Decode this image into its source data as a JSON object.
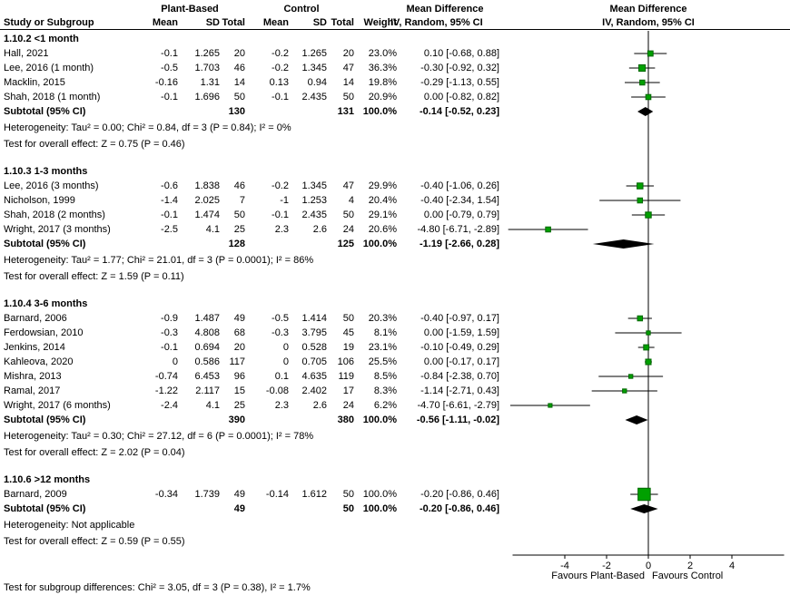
{
  "header": {
    "group_left": "Plant-Based",
    "group_right": "Control",
    "md_col_title": "Mean Difference",
    "md_col_sub": "IV, Random, 95% CI",
    "plot_title": "Mean Difference",
    "plot_sub": "IV, Random, 95% CI",
    "study_col": "Study or Subgroup",
    "mean": "Mean",
    "sd": "SD",
    "total": "Total",
    "weight": "Weight"
  },
  "footer": {
    "subgroup_test": "Test for subgroup differences: Chi² = 3.05, df = 3 (P = 0.38), I² = 1.7%"
  },
  "chart_data": {
    "type": "forest",
    "title": "Mean Difference",
    "subtitle": "IV, Random, 95% CI",
    "colors": {
      "marker": "#00A000",
      "marker_border": "#006600",
      "diamond": "#000000",
      "line": "#000000"
    },
    "axis": {
      "ticks": [
        -4,
        -2,
        0,
        2,
        4
      ],
      "xmin": -6.5,
      "xmax": 6.5,
      "left_label": "Favours Plant-Based",
      "right_label": "Favours Control"
    },
    "groups": [
      {
        "title": "1.10.2 <1 month",
        "studies": [
          {
            "name": "Hall, 2021",
            "mean1": "-0.1",
            "sd1": "1.265",
            "n1": "20",
            "mean2": "-0.2",
            "sd2": "1.265",
            "n2": "20",
            "weight": "23.0%",
            "ci_text": "0.10 [-0.68, 0.88]",
            "est": 0.1,
            "lo": -0.68,
            "hi": 0.88,
            "wpct": 23.0
          },
          {
            "name": "Lee, 2016 (1 month)",
            "mean1": "-0.5",
            "sd1": "1.703",
            "n1": "46",
            "mean2": "-0.2",
            "sd2": "1.345",
            "n2": "47",
            "weight": "36.3%",
            "ci_text": "-0.30 [-0.92, 0.32]",
            "est": -0.3,
            "lo": -0.92,
            "hi": 0.32,
            "wpct": 36.3
          },
          {
            "name": "Macklin, 2015",
            "mean1": "-0.16",
            "sd1": "1.31",
            "n1": "14",
            "mean2": "0.13",
            "sd2": "0.94",
            "n2": "14",
            "weight": "19.8%",
            "ci_text": "-0.29 [-1.13, 0.55]",
            "est": -0.29,
            "lo": -1.13,
            "hi": 0.55,
            "wpct": 19.8
          },
          {
            "name": "Shah, 2018 (1 month)",
            "mean1": "-0.1",
            "sd1": "1.696",
            "n1": "50",
            "mean2": "-0.1",
            "sd2": "2.435",
            "n2": "50",
            "weight": "20.9%",
            "ci_text": "0.00 [-0.82, 0.82]",
            "est": 0.0,
            "lo": -0.82,
            "hi": 0.82,
            "wpct": 20.9
          }
        ],
        "subtotal": {
          "label": "Subtotal (95% CI)",
          "n1": "130",
          "n2": "131",
          "weight": "100.0%",
          "ci_text": "-0.14 [-0.52, 0.23]",
          "est": -0.14,
          "lo": -0.52,
          "hi": 0.23
        },
        "heterogeneity": "Heterogeneity: Tau² = 0.00; Chi² = 0.84, df = 3 (P = 0.84); I² = 0%",
        "overall_effect": "Test for overall effect: Z = 0.75 (P = 0.46)"
      },
      {
        "title": "1.10.3 1-3 months",
        "studies": [
          {
            "name": "Lee, 2016 (3 months)",
            "mean1": "-0.6",
            "sd1": "1.838",
            "n1": "46",
            "mean2": "-0.2",
            "sd2": "1.345",
            "n2": "47",
            "weight": "29.9%",
            "ci_text": "-0.40 [-1.06, 0.26]",
            "est": -0.4,
            "lo": -1.06,
            "hi": 0.26,
            "wpct": 29.9
          },
          {
            "name": "Nicholson, 1999",
            "mean1": "-1.4",
            "sd1": "2.025",
            "n1": "7",
            "mean2": "-1",
            "sd2": "1.253",
            "n2": "4",
            "weight": "20.4%",
            "ci_text": "-0.40 [-2.34, 1.54]",
            "est": -0.4,
            "lo": -2.34,
            "hi": 1.54,
            "wpct": 20.4
          },
          {
            "name": "Shah, 2018 (2 months)",
            "mean1": "-0.1",
            "sd1": "1.474",
            "n1": "50",
            "mean2": "-0.1",
            "sd2": "2.435",
            "n2": "50",
            "weight": "29.1%",
            "ci_text": "0.00 [-0.79, 0.79]",
            "est": 0.0,
            "lo": -0.79,
            "hi": 0.79,
            "wpct": 29.1
          },
          {
            "name": "Wright, 2017 (3 months)",
            "mean1": "-2.5",
            "sd1": "4.1",
            "n1": "25",
            "mean2": "2.3",
            "sd2": "2.6",
            "n2": "24",
            "weight": "20.6%",
            "ci_text": "-4.80 [-6.71, -2.89]",
            "est": -4.8,
            "lo": -6.71,
            "hi": -2.89,
            "wpct": 20.6
          }
        ],
        "subtotal": {
          "label": "Subtotal (95% CI)",
          "n1": "128",
          "n2": "125",
          "weight": "100.0%",
          "ci_text": "-1.19 [-2.66, 0.28]",
          "est": -1.19,
          "lo": -2.66,
          "hi": 0.28
        },
        "heterogeneity": "Heterogeneity: Tau² = 1.77; Chi² = 21.01, df = 3 (P = 0.0001); I² = 86%",
        "overall_effect": "Test for overall effect: Z = 1.59 (P = 0.11)"
      },
      {
        "title": "1.10.4 3-6 months",
        "studies": [
          {
            "name": "Barnard, 2006",
            "mean1": "-0.9",
            "sd1": "1.487",
            "n1": "49",
            "mean2": "-0.5",
            "sd2": "1.414",
            "n2": "50",
            "weight": "20.3%",
            "ci_text": "-0.40 [-0.97, 0.17]",
            "est": -0.4,
            "lo": -0.97,
            "hi": 0.17,
            "wpct": 20.3
          },
          {
            "name": "Ferdowsian, 2010",
            "mean1": "-0.3",
            "sd1": "4.808",
            "n1": "68",
            "mean2": "-0.3",
            "sd2": "3.795",
            "n2": "45",
            "weight": "8.1%",
            "ci_text": "0.00 [-1.59, 1.59]",
            "est": 0.0,
            "lo": -1.59,
            "hi": 1.59,
            "wpct": 8.1
          },
          {
            "name": "Jenkins, 2014",
            "mean1": "-0.1",
            "sd1": "0.694",
            "n1": "20",
            "mean2": "0",
            "sd2": "0.528",
            "n2": "19",
            "weight": "23.1%",
            "ci_text": "-0.10 [-0.49, 0.29]",
            "est": -0.1,
            "lo": -0.49,
            "hi": 0.29,
            "wpct": 23.1
          },
          {
            "name": "Kahleova, 2020",
            "mean1": "0",
            "sd1": "0.586",
            "n1": "117",
            "mean2": "0",
            "sd2": "0.705",
            "n2": "106",
            "weight": "25.5%",
            "ci_text": "0.00 [-0.17, 0.17]",
            "est": 0.0,
            "lo": -0.17,
            "hi": 0.17,
            "wpct": 25.5
          },
          {
            "name": "Mishra, 2013",
            "mean1": "-0.74",
            "sd1": "6.453",
            "n1": "96",
            "mean2": "0.1",
            "sd2": "4.635",
            "n2": "119",
            "weight": "8.5%",
            "ci_text": "-0.84 [-2.38, 0.70]",
            "est": -0.84,
            "lo": -2.38,
            "hi": 0.7,
            "wpct": 8.5
          },
          {
            "name": "Ramal, 2017",
            "mean1": "-1.22",
            "sd1": "2.117",
            "n1": "15",
            "mean2": "-0.08",
            "sd2": "2.402",
            "n2": "17",
            "weight": "8.3%",
            "ci_text": "-1.14 [-2.71, 0.43]",
            "est": -1.14,
            "lo": -2.71,
            "hi": 0.43,
            "wpct": 8.3
          },
          {
            "name": "Wright, 2017 (6 months)",
            "mean1": "-2.4",
            "sd1": "4.1",
            "n1": "25",
            "mean2": "2.3",
            "sd2": "2.6",
            "n2": "24",
            "weight": "6.2%",
            "ci_text": "-4.70 [-6.61, -2.79]",
            "est": -4.7,
            "lo": -6.61,
            "hi": -2.79,
            "wpct": 6.2
          }
        ],
        "subtotal": {
          "label": "Subtotal (95% CI)",
          "n1": "390",
          "n2": "380",
          "weight": "100.0%",
          "ci_text": "-0.56 [-1.11, -0.02]",
          "est": -0.56,
          "lo": -1.11,
          "hi": -0.02
        },
        "heterogeneity": "Heterogeneity: Tau² = 0.30; Chi² = 27.12, df = 6 (P = 0.0001); I² = 78%",
        "overall_effect": "Test for overall effect: Z = 2.02 (P = 0.04)"
      },
      {
        "title": "1.10.6 >12 months",
        "studies": [
          {
            "name": "Barnard, 2009",
            "mean1": "-0.34",
            "sd1": "1.739",
            "n1": "49",
            "mean2": "-0.14",
            "sd2": "1.612",
            "n2": "50",
            "weight": "100.0%",
            "ci_text": "-0.20 [-0.86, 0.46]",
            "est": -0.2,
            "lo": -0.86,
            "hi": 0.46,
            "wpct": 100.0
          }
        ],
        "subtotal": {
          "label": "Subtotal (95% CI)",
          "n1": "49",
          "n2": "50",
          "weight": "100.0%",
          "ci_text": "-0.20 [-0.86, 0.46]",
          "est": -0.2,
          "lo": -0.86,
          "hi": 0.46
        },
        "heterogeneity": "Heterogeneity: Not applicable",
        "overall_effect": "Test for overall effect: Z = 0.59 (P = 0.55)"
      }
    ]
  }
}
